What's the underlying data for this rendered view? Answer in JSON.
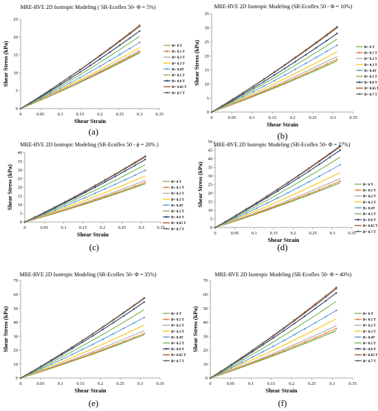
{
  "legend_labels": [
    "B= 0 T",
    "B= 0.1 T",
    "B= 0.2 T",
    "B= 0.3 T",
    "B= 0.4T",
    "B= 0.5 T",
    "B= 0.6 T",
    "B= 0.65 T",
    "B= 0.7 T"
  ],
  "series_colors": [
    "#70ad47",
    "#ed7d31",
    "#a5a5a5",
    "#ffc000",
    "#5b9bd5",
    "#70ad47",
    "#264478",
    "#9e480e",
    "#636363"
  ],
  "chart_data": [
    {
      "panel": "(a)",
      "type": "line",
      "title": "MRE-RVE 2D Isotropic Modeling ( SR-Ecoflex 50- Φ = 5%)",
      "xlabel": "Shear Strain",
      "ylabel": "Shear Stress (kPa)",
      "xlim": [
        0,
        0.35
      ],
      "ylim": [
        0,
        25
      ],
      "xticks": [
        "0",
        "0.05",
        "0.1",
        "0.15",
        "0.2",
        "0.25",
        "0.3",
        "0.35"
      ],
      "yticks": [
        "0",
        "5",
        "10",
        "15",
        "20",
        "25"
      ],
      "x_end": 0.3,
      "grid": false,
      "legend": "right",
      "series_end_values": [
        15.6,
        15.9,
        16.3,
        17.1,
        18.5,
        20.2,
        21.7,
        23.0,
        23.3
      ]
    },
    {
      "panel": "(b)",
      "type": "line",
      "title": "MRE-RVE 2D Isotropic Modeling (SR-Ecoflex 50 - Φ = 10%)",
      "xlabel": "Shear Strain",
      "ylabel": "Shear Stress (kPa)",
      "xlim": [
        0,
        0.35
      ],
      "ylim": [
        0,
        35
      ],
      "xticks": [
        "0",
        "0.05",
        "0.1",
        "0.15",
        "0.2",
        "0.25",
        "0.3",
        "0.35"
      ],
      "yticks": [
        "0",
        "5",
        "10",
        "15",
        "20",
        "25",
        "30",
        "35"
      ],
      "x_end": 0.31,
      "grid": false,
      "legend": "right",
      "series_end_values": [
        18.2,
        18.8,
        19.8,
        21.5,
        23.8,
        26.0,
        28.0,
        30.0,
        30.4
      ]
    },
    {
      "panel": "(c)",
      "type": "line",
      "title": "MRE-RVE 2D Isotropic Modeling (SR-Ecoflex 50 - ϕ = 20% )",
      "xlabel": "Shear Strain",
      "ylabel": "Shear Stress (kPa)",
      "xlim": [
        0,
        0.35
      ],
      "ylim": [
        0,
        40
      ],
      "xticks": [
        "0",
        "0.05",
        "0.1",
        "0.15",
        "0.2",
        "0.25",
        "0.3",
        "0.35"
      ],
      "yticks": [
        "0",
        "5",
        "10",
        "15",
        "20",
        "25",
        "30",
        "35",
        "40"
      ],
      "x_end": 0.31,
      "grid": false,
      "legend": "right",
      "series_end_values": [
        22.0,
        22.8,
        24.0,
        26.5,
        29.8,
        33.0,
        36.0,
        37.5,
        38.0
      ]
    },
    {
      "panel": "(d)",
      "type": "line",
      "title": "MRE-RVE 2D Isotropic Modeling (SR-Ecoflex 50- Φ = 27%)",
      "xlabel": "Shear Strain",
      "ylabel": "Shear Stress (kPa)",
      "xlim": [
        0,
        0.35
      ],
      "ylim": [
        0,
        50
      ],
      "xticks": [
        "0",
        "0.05",
        "0.1",
        "0.15",
        "0.2",
        "0.25",
        "0.3",
        "0.35"
      ],
      "yticks": [
        "0",
        "5",
        "10",
        "15",
        "20",
        "25",
        "30",
        "35",
        "40",
        "45",
        "50"
      ],
      "x_end": 0.32,
      "grid": false,
      "legend": "right",
      "series_end_values": [
        26.0,
        27.0,
        28.5,
        32.0,
        36.5,
        41.0,
        45.0,
        47.0,
        47.5
      ]
    },
    {
      "panel": "(e)",
      "type": "line",
      "title": "MRE-RVE 2D Isotropic Modeling (SR-Ecoflex 50- Φ = 35%)",
      "xlabel": "Shear Strain",
      "ylabel": "Shear Stress (kPa)",
      "xlim": [
        0,
        0.35
      ],
      "ylim": [
        0,
        70
      ],
      "xticks": [
        "0",
        "0.05",
        "0.1",
        "0.15",
        "0.2",
        "0.25",
        "0.3",
        "0.35"
      ],
      "yticks": [
        "0",
        "10",
        "20",
        "30",
        "40",
        "50",
        "60",
        "70"
      ],
      "x_end": 0.31,
      "grid": false,
      "legend": "right",
      "series_end_values": [
        31.0,
        32.0,
        34.0,
        38.0,
        43.5,
        49.0,
        54.5,
        57.0,
        57.5
      ]
    },
    {
      "panel": "(f)",
      "type": "line",
      "title": "MRE-RVE 2D Isotropic Modeling (SR-Ecoflex 50- Φ = 40%)",
      "xlabel": "Shear Strain",
      "ylabel": "Shear Stress (kPa)",
      "xlim": [
        0,
        0.35
      ],
      "ylim": [
        0,
        70
      ],
      "xticks": [
        "0",
        "0.05",
        "0.1",
        "0.15",
        "0.2",
        "0.25",
        "0.3",
        "0.35"
      ],
      "yticks": [
        "0",
        "10",
        "20",
        "30",
        "40",
        "50",
        "60",
        "70"
      ],
      "x_end": 0.31,
      "grid": false,
      "legend": "right",
      "series_end_values": [
        34.0,
        35.5,
        37.5,
        42.5,
        48.5,
        55.0,
        61.0,
        64.0,
        65.0
      ]
    }
  ]
}
